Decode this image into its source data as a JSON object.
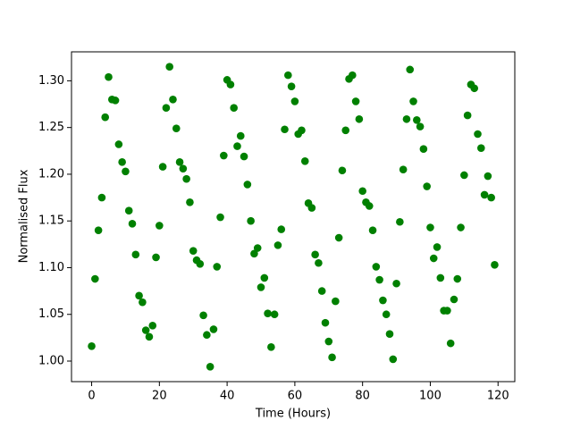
{
  "chart_data": {
    "type": "scatter",
    "x_label": "Time (Hours)",
    "y_label": "Normalised Flux",
    "color": "green",
    "grid": false,
    "xlim": [
      -5.95,
      124.95
    ],
    "ylim": [
      0.978,
      1.331
    ],
    "xticks": [
      0,
      20,
      40,
      60,
      80,
      100,
      120
    ],
    "yticks": [
      {
        "value": 1.0,
        "label": "1.00"
      },
      1.05,
      {
        "value": 1.1,
        "label": "1.10"
      },
      1.15,
      {
        "value": 1.2,
        "label": "1.20"
      },
      1.25,
      {
        "value": 1.3,
        "label": "1.30"
      }
    ],
    "x": [
      0,
      1,
      2,
      3,
      4,
      5,
      6,
      7,
      8,
      9,
      10,
      11,
      12,
      13,
      14,
      15,
      16,
      17,
      18,
      19,
      20,
      21,
      22,
      23,
      24,
      25,
      26,
      27,
      28,
      29,
      30,
      31,
      32,
      33,
      34,
      35,
      36,
      37,
      38,
      39,
      40,
      41,
      42,
      43,
      44,
      45,
      46,
      47,
      48,
      49,
      50,
      51,
      52,
      53,
      54,
      55,
      56,
      57,
      58,
      59,
      60,
      61,
      62,
      63,
      64,
      65,
      66,
      67,
      68,
      69,
      70,
      71,
      72,
      73,
      74,
      75,
      76,
      77,
      78,
      79,
      80,
      81,
      82,
      83,
      84,
      85,
      86,
      87,
      88,
      89,
      90,
      91,
      92,
      93,
      94,
      95,
      96,
      97,
      98,
      99,
      100,
      101,
      102,
      103,
      104,
      105,
      106,
      107,
      108,
      109,
      110,
      111,
      112,
      113,
      114,
      115,
      116,
      117,
      118,
      119
    ],
    "y": [
      1.016,
      1.088,
      1.14,
      1.175,
      1.261,
      1.304,
      1.28,
      1.279,
      1.232,
      1.213,
      1.203,
      1.161,
      1.147,
      1.114,
      1.07,
      1.063,
      1.033,
      1.026,
      1.038,
      1.111,
      1.145,
      1.208,
      1.271,
      1.315,
      1.28,
      1.249,
      1.213,
      1.206,
      1.195,
      1.17,
      1.118,
      1.108,
      1.104,
      1.049,
      1.028,
      0.994,
      1.034,
      1.101,
      1.154,
      1.22,
      1.301,
      1.296,
      1.271,
      1.23,
      1.241,
      1.219,
      1.189,
      1.15,
      1.115,
      1.121,
      1.079,
      1.089,
      1.051,
      1.015,
      1.05,
      1.124,
      1.141,
      1.248,
      1.306,
      1.294,
      1.278,
      1.243,
      1.247,
      1.214,
      1.169,
      1.164,
      1.114,
      1.105,
      1.075,
      1.041,
      1.021,
      1.004,
      1.064,
      1.132,
      1.204,
      1.247,
      1.302,
      1.306,
      1.278,
      1.259,
      1.182,
      1.17,
      1.166,
      1.14,
      1.101,
      1.087,
      1.065,
      1.05,
      1.029,
      1.002,
      1.083,
      1.149,
      1.205,
      1.259,
      1.312,
      1.278,
      1.258,
      1.251,
      1.227,
      1.187,
      1.143,
      1.11,
      1.122,
      1.089,
      1.054,
      1.054,
      1.019,
      1.066,
      1.088,
      1.143,
      1.199,
      1.263,
      1.296,
      1.292,
      1.243,
      1.228,
      1.178,
      1.198,
      1.175,
      1.103
    ]
  }
}
